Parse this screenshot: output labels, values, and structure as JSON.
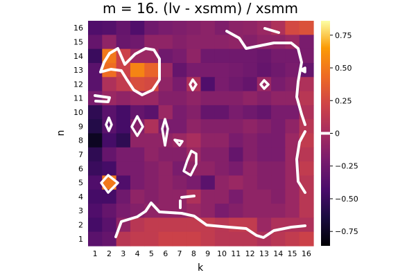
{
  "chart_data": {
    "type": "heatmap",
    "title": "m = 16. (lv - xsmm) / xsmm",
    "xlabel": "k",
    "ylabel": "n",
    "x_ticks": [
      "1",
      "2",
      "3",
      "4",
      "5",
      "6",
      "7",
      "8",
      "9",
      "10",
      "11",
      "12",
      "13",
      "14",
      "15",
      "16"
    ],
    "y_ticks": [
      "1",
      "2",
      "3",
      "4",
      "5",
      "6",
      "7",
      "8",
      "9",
      "10",
      "11",
      "12",
      "13",
      "14",
      "15",
      "16"
    ],
    "colormap": "inferno",
    "clim": [
      -0.86,
      0.86
    ],
    "colorbar_ticks": [
      "0.75",
      "0.50",
      "0.25",
      "0",
      "−0.25",
      "−0.50",
      "−0.75"
    ],
    "colorbar_tick_values": [
      0.75,
      0.5,
      0.25,
      0,
      -0.25,
      -0.5,
      -0.75
    ],
    "contour_level": 0,
    "contour_color": "#ffffff",
    "grid": false,
    "z_rows_top_to_bottom_n16_to_n1": [
      [
        -0.4,
        -0.38,
        -0.3,
        -0.4,
        -0.25,
        -0.2,
        -0.18,
        -0.15,
        -0.12,
        -0.18,
        -0.12,
        -0.1,
        -0.05,
        0.05,
        0.25,
        0.3
      ],
      [
        -0.3,
        -0.1,
        -0.28,
        -0.25,
        -0.1,
        -0.1,
        -0.15,
        -0.12,
        -0.12,
        -0.12,
        -0.1,
        -0.15,
        -0.1,
        -0.1,
        -0.05,
        -0.2
      ],
      [
        -0.5,
        0.5,
        0.2,
        -0.05,
        -0.05,
        -0.25,
        -0.2,
        -0.1,
        -0.25,
        -0.25,
        -0.25,
        -0.25,
        -0.28,
        -0.22,
        -0.22,
        -0.2
      ],
      [
        -0.35,
        0.45,
        0.2,
        0.55,
        0.4,
        -0.05,
        -0.3,
        -0.2,
        -0.2,
        -0.2,
        -0.22,
        -0.25,
        -0.3,
        -0.25,
        -0.2,
        -0.3
      ],
      [
        -0.35,
        0.05,
        0.15,
        0.28,
        0.25,
        -0.1,
        -0.2,
        0.05,
        -0.4,
        -0.2,
        -0.25,
        -0.3,
        -0.05,
        -0.2,
        -0.15,
        0.05
      ],
      [
        -0.2,
        -0.05,
        -0.1,
        -0.05,
        -0.05,
        -0.15,
        -0.15,
        -0.1,
        -0.15,
        -0.15,
        -0.15,
        -0.1,
        -0.15,
        -0.1,
        -0.1,
        0.1
      ],
      [
        -0.55,
        -0.35,
        -0.45,
        -0.3,
        -0.35,
        -0.05,
        -0.2,
        -0.15,
        -0.3,
        -0.3,
        -0.2,
        -0.25,
        -0.3,
        -0.2,
        -0.2,
        0.05
      ],
      [
        -0.6,
        -0.35,
        -0.45,
        -0.15,
        0.05,
        -0.2,
        -0.2,
        -0.1,
        -0.15,
        -0.15,
        -0.15,
        -0.1,
        -0.15,
        -0.2,
        -0.1,
        0.1
      ],
      [
        -0.75,
        -0.45,
        -0.55,
        -0.1,
        -0.1,
        -0.1,
        -0.05,
        0.02,
        -0.1,
        -0.1,
        -0.2,
        -0.15,
        -0.2,
        -0.2,
        -0.05,
        0.15
      ],
      [
        -0.55,
        -0.3,
        -0.2,
        -0.2,
        -0.1,
        -0.15,
        -0.15,
        -0.05,
        -0.15,
        -0.15,
        -0.3,
        -0.15,
        -0.2,
        -0.2,
        -0.05,
        0.1
      ],
      [
        -0.5,
        -0.45,
        -0.2,
        -0.2,
        -0.15,
        -0.1,
        -0.2,
        -0.1,
        -0.1,
        -0.15,
        -0.2,
        -0.1,
        -0.15,
        -0.15,
        -0.05,
        0.15
      ],
      [
        -0.4,
        0.5,
        -0.4,
        -0.2,
        -0.15,
        -0.1,
        -0.15,
        -0.2,
        -0.35,
        -0.1,
        -0.05,
        -0.1,
        -0.15,
        -0.15,
        -0.05,
        0.1
      ],
      [
        -0.45,
        -0.45,
        -0.25,
        -0.1,
        -0.15,
        -0.1,
        -0.1,
        0.05,
        -0.1,
        -0.1,
        -0.2,
        -0.1,
        -0.1,
        -0.15,
        -0.05,
        0.1
      ],
      [
        -0.4,
        -0.3,
        -0.2,
        -0.15,
        -0.1,
        -0.1,
        -0.1,
        -0.05,
        -0.1,
        -0.2,
        -0.15,
        -0.1,
        -0.1,
        -0.1,
        -0.05,
        0.1
      ],
      [
        -0.45,
        -0.35,
        -0.1,
        0.1,
        0.15,
        0.15,
        0.15,
        0.15,
        0.15,
        0.1,
        0.15,
        0.15,
        -0.05,
        0.05,
        0.05,
        0.05
      ],
      [
        -0.35,
        -0.3,
        0.1,
        0.15,
        0.15,
        0.2,
        0.2,
        0.2,
        0.15,
        0.1,
        0.1,
        0.1,
        0.05,
        0.1,
        0.15,
        0.2
      ]
    ]
  }
}
